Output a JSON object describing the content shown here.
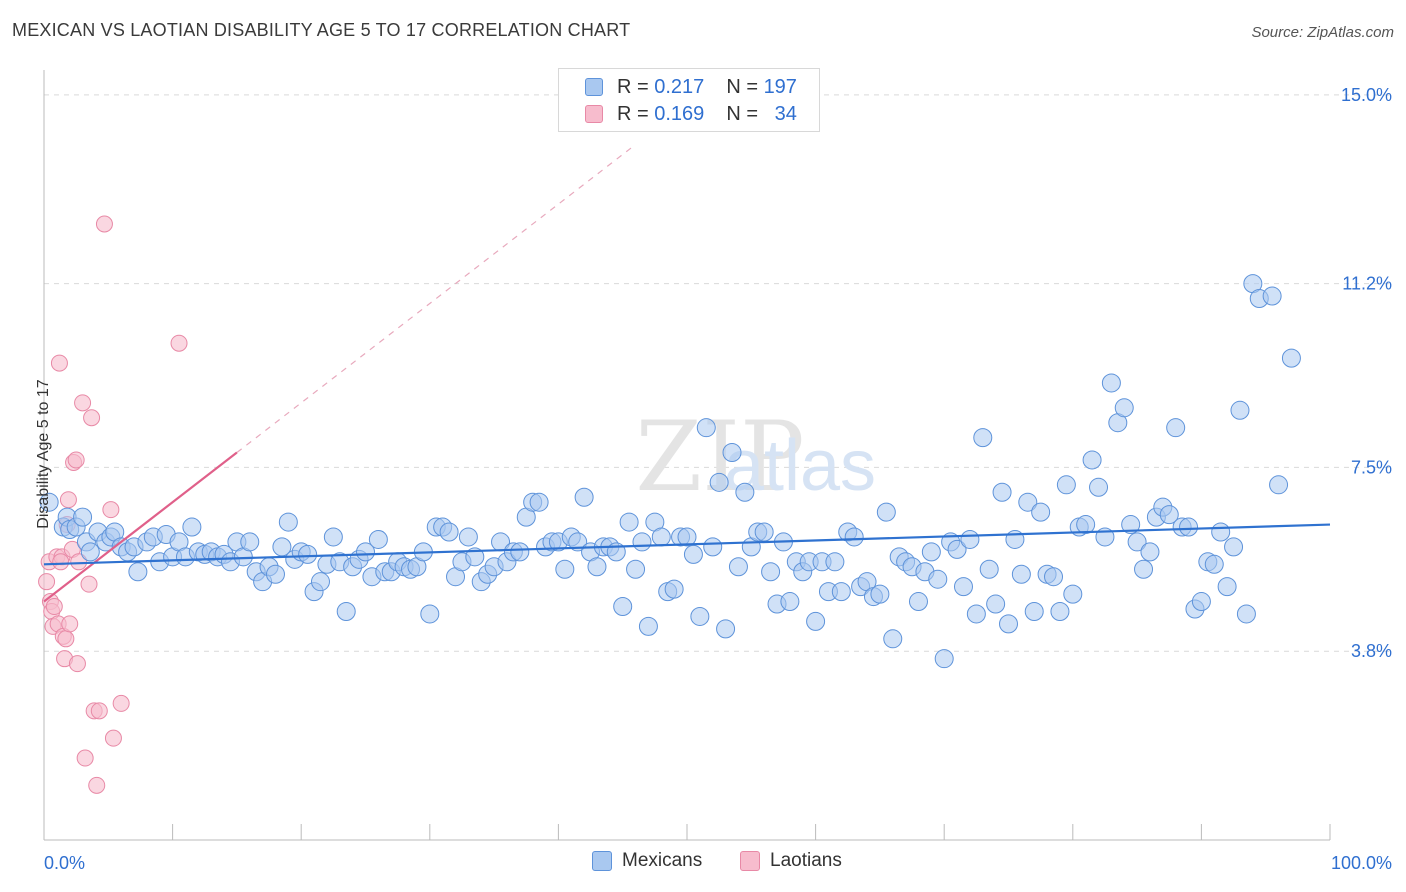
{
  "title": "MEXICAN VS LAOTIAN DISABILITY AGE 5 TO 17 CORRELATION CHART",
  "source": "Source: ZipAtlas.com",
  "watermark": "ZIPatlas",
  "legend": {
    "rows": [
      {
        "r_label": "R =",
        "r_value": "0.217",
        "n_label": "N =",
        "n_value": "197"
      },
      {
        "r_label": "R =",
        "r_value": "0.169",
        "n_label": "N =",
        "n_value": "34"
      }
    ]
  },
  "bottom_legend": [
    "Mexicans",
    "Laotians"
  ],
  "colors": {
    "mexicans_fill": "#a9c8f0",
    "mexicans_stroke": "#5e93da",
    "mexicans_line": "#2f72d0",
    "laotians_fill": "#f7bccd",
    "laotians_stroke": "#e889a6",
    "laotians_line": "#e0608a",
    "grid": "#d9d9d9",
    "tick_label": "#2f6fd0"
  },
  "chart_data": {
    "type": "scatter",
    "title": "MEXICAN VS LAOTIAN DISABILITY AGE 5 TO 17 CORRELATION CHART",
    "xlabel": "",
    "ylabel": "Disability Age 5 to 17",
    "xlim": [
      0,
      100
    ],
    "ylim": [
      0,
      15.5
    ],
    "x_tick_labels": [
      "0.0%",
      "100.0%"
    ],
    "y_ticks": [
      3.8,
      7.5,
      11.2,
      15.0
    ],
    "y_tick_labels": [
      "3.8%",
      "7.5%",
      "11.2%",
      "15.0%"
    ],
    "grid": true,
    "series": [
      {
        "name": "Mexicans",
        "trend": {
          "x": [
            0,
            100
          ],
          "y": [
            5.55,
            6.35
          ]
        },
        "points": [
          [
            0.4,
            6.8
          ],
          [
            1.5,
            6.3
          ],
          [
            1.8,
            6.5
          ],
          [
            2.0,
            6.25
          ],
          [
            2.5,
            6.3
          ],
          [
            3.0,
            6.5
          ],
          [
            3.3,
            6.0
          ],
          [
            3.6,
            5.8
          ],
          [
            4.2,
            6.2
          ],
          [
            4.8,
            6.0
          ],
          [
            5.2,
            6.1
          ],
          [
            5.5,
            6.2
          ],
          [
            6.0,
            5.9
          ],
          [
            6.5,
            5.8
          ],
          [
            7.0,
            5.9
          ],
          [
            7.3,
            5.4
          ],
          [
            8.0,
            6.0
          ],
          [
            8.5,
            6.1
          ],
          [
            9.0,
            5.6
          ],
          [
            9.5,
            6.15
          ],
          [
            10.0,
            5.7
          ],
          [
            10.5,
            6.0
          ],
          [
            11.0,
            5.7
          ],
          [
            11.5,
            6.3
          ],
          [
            12.0,
            5.8
          ],
          [
            12.5,
            5.75
          ],
          [
            13.0,
            5.8
          ],
          [
            13.5,
            5.7
          ],
          [
            14.0,
            5.75
          ],
          [
            14.5,
            5.6
          ],
          [
            15.0,
            6.0
          ],
          [
            15.5,
            5.7
          ],
          [
            16.0,
            6.0
          ],
          [
            16.5,
            5.4
          ],
          [
            17.0,
            5.2
          ],
          [
            17.5,
            5.5
          ],
          [
            18.0,
            5.35
          ],
          [
            18.5,
            5.9
          ],
          [
            19.0,
            6.4
          ],
          [
            19.5,
            5.65
          ],
          [
            20.0,
            5.8
          ],
          [
            20.5,
            5.75
          ],
          [
            21.0,
            5.0
          ],
          [
            21.5,
            5.2
          ],
          [
            22.0,
            5.55
          ],
          [
            22.5,
            6.1
          ],
          [
            23.0,
            5.6
          ],
          [
            23.5,
            4.6
          ],
          [
            24.0,
            5.5
          ],
          [
            24.5,
            5.65
          ],
          [
            25.0,
            5.8
          ],
          [
            25.5,
            5.3
          ],
          [
            26.0,
            6.05
          ],
          [
            26.5,
            5.4
          ],
          [
            27.0,
            5.4
          ],
          [
            27.5,
            5.6
          ],
          [
            28.0,
            5.5
          ],
          [
            28.5,
            5.45
          ],
          [
            29.0,
            5.5
          ],
          [
            29.5,
            5.8
          ],
          [
            30.0,
            4.55
          ],
          [
            30.5,
            6.3
          ],
          [
            31.0,
            6.3
          ],
          [
            31.5,
            6.2
          ],
          [
            32.0,
            5.3
          ],
          [
            32.5,
            5.6
          ],
          [
            33.0,
            6.1
          ],
          [
            33.5,
            5.7
          ],
          [
            34.0,
            5.2
          ],
          [
            34.5,
            5.35
          ],
          [
            35.0,
            5.5
          ],
          [
            35.5,
            6.0
          ],
          [
            36.0,
            5.6
          ],
          [
            36.5,
            5.8
          ],
          [
            37.0,
            5.8
          ],
          [
            37.5,
            6.5
          ],
          [
            38.0,
            6.8
          ],
          [
            38.5,
            6.8
          ],
          [
            39.0,
            5.9
          ],
          [
            39.5,
            6.0
          ],
          [
            40.0,
            6.0
          ],
          [
            40.5,
            5.45
          ],
          [
            41.0,
            6.1
          ],
          [
            41.5,
            6.0
          ],
          [
            42.0,
            6.9
          ],
          [
            42.5,
            5.8
          ],
          [
            43.0,
            5.5
          ],
          [
            43.5,
            5.9
          ],
          [
            44.0,
            5.9
          ],
          [
            44.5,
            5.8
          ],
          [
            45.0,
            4.7
          ],
          [
            45.5,
            6.4
          ],
          [
            46.0,
            5.45
          ],
          [
            46.5,
            6.0
          ],
          [
            47.0,
            4.3
          ],
          [
            47.5,
            6.4
          ],
          [
            48.0,
            6.1
          ],
          [
            48.5,
            5.0
          ],
          [
            49.0,
            5.05
          ],
          [
            49.5,
            6.1
          ],
          [
            50.0,
            6.1
          ],
          [
            50.5,
            5.75
          ],
          [
            51.0,
            4.5
          ],
          [
            51.5,
            8.3
          ],
          [
            52.0,
            5.9
          ],
          [
            52.5,
            7.2
          ],
          [
            53.0,
            4.25
          ],
          [
            53.5,
            7.8
          ],
          [
            54.0,
            5.5
          ],
          [
            54.5,
            7.0
          ],
          [
            55.0,
            5.9
          ],
          [
            55.5,
            6.2
          ],
          [
            56.0,
            6.2
          ],
          [
            56.5,
            5.4
          ],
          [
            57.0,
            4.75
          ],
          [
            57.5,
            6.0
          ],
          [
            58.0,
            4.8
          ],
          [
            58.5,
            5.6
          ],
          [
            59.0,
            5.4
          ],
          [
            59.5,
            5.6
          ],
          [
            60.0,
            4.4
          ],
          [
            60.5,
            5.6
          ],
          [
            61.0,
            5.0
          ],
          [
            61.5,
            5.6
          ],
          [
            62.0,
            5.0
          ],
          [
            62.5,
            6.2
          ],
          [
            63.0,
            6.1
          ],
          [
            63.5,
            5.1
          ],
          [
            64.0,
            5.2
          ],
          [
            64.5,
            4.9
          ],
          [
            65.0,
            4.95
          ],
          [
            65.5,
            6.6
          ],
          [
            66.0,
            4.05
          ],
          [
            66.5,
            5.7
          ],
          [
            67.0,
            5.6
          ],
          [
            67.5,
            5.5
          ],
          [
            68.0,
            4.8
          ],
          [
            68.5,
            5.4
          ],
          [
            69.0,
            5.8
          ],
          [
            69.5,
            5.25
          ],
          [
            70.0,
            3.65
          ],
          [
            70.5,
            6.0
          ],
          [
            71.0,
            5.85
          ],
          [
            71.5,
            5.1
          ],
          [
            72.0,
            6.05
          ],
          [
            72.5,
            4.55
          ],
          [
            73.0,
            8.1
          ],
          [
            73.5,
            5.45
          ],
          [
            74.0,
            4.75
          ],
          [
            74.5,
            7.0
          ],
          [
            75.0,
            4.35
          ],
          [
            75.5,
            6.05
          ],
          [
            76.0,
            5.35
          ],
          [
            76.5,
            6.8
          ],
          [
            77.0,
            4.6
          ],
          [
            77.5,
            6.6
          ],
          [
            78.0,
            5.35
          ],
          [
            78.5,
            5.3
          ],
          [
            79.0,
            4.6
          ],
          [
            79.5,
            7.15
          ],
          [
            80.0,
            4.95
          ],
          [
            80.5,
            6.3
          ],
          [
            81.0,
            6.35
          ],
          [
            81.5,
            7.65
          ],
          [
            82.0,
            7.1
          ],
          [
            82.5,
            6.1
          ],
          [
            83.0,
            9.2
          ],
          [
            83.5,
            8.4
          ],
          [
            84.0,
            8.7
          ],
          [
            84.5,
            6.35
          ],
          [
            85.0,
            6.0
          ],
          [
            85.5,
            5.45
          ],
          [
            86.0,
            5.8
          ],
          [
            86.5,
            6.5
          ],
          [
            87.0,
            6.7
          ],
          [
            87.5,
            6.55
          ],
          [
            88.0,
            8.3
          ],
          [
            88.5,
            6.3
          ],
          [
            89.0,
            6.3
          ],
          [
            89.5,
            4.65
          ],
          [
            90.0,
            4.8
          ],
          [
            90.5,
            5.6
          ],
          [
            91.0,
            5.55
          ],
          [
            91.5,
            6.2
          ],
          [
            92.0,
            5.1
          ],
          [
            92.5,
            5.9
          ],
          [
            93.0,
            8.65
          ],
          [
            93.5,
            4.55
          ],
          [
            94.0,
            11.2
          ],
          [
            94.5,
            10.9
          ],
          [
            95.5,
            10.95
          ],
          [
            96.0,
            7.15
          ],
          [
            97.0,
            9.7
          ]
        ]
      },
      {
        "name": "Laotians",
        "trend": {
          "x": [
            0,
            15
          ],
          "y": [
            4.8,
            7.8
          ]
        },
        "trend_extension": {
          "x": [
            15,
            46
          ],
          "y": [
            7.8,
            14.0
          ]
        },
        "points": [
          [
            0.2,
            5.2
          ],
          [
            0.4,
            5.6
          ],
          [
            0.5,
            4.8
          ],
          [
            0.6,
            4.6
          ],
          [
            0.7,
            4.3
          ],
          [
            0.8,
            4.7
          ],
          [
            1.0,
            5.7
          ],
          [
            1.1,
            4.35
          ],
          [
            1.2,
            9.6
          ],
          [
            1.4,
            5.7
          ],
          [
            1.5,
            4.1
          ],
          [
            1.6,
            3.65
          ],
          [
            1.7,
            4.05
          ],
          [
            1.9,
            6.85
          ],
          [
            2.0,
            4.35
          ],
          [
            2.2,
            5.85
          ],
          [
            2.3,
            7.6
          ],
          [
            2.5,
            7.65
          ],
          [
            2.7,
            5.6
          ],
          [
            2.6,
            3.55
          ],
          [
            3.0,
            8.8
          ],
          [
            3.2,
            1.65
          ],
          [
            3.5,
            5.15
          ],
          [
            3.7,
            8.5
          ],
          [
            3.9,
            2.6
          ],
          [
            4.1,
            1.1
          ],
          [
            4.3,
            2.6
          ],
          [
            4.7,
            12.4
          ],
          [
            5.2,
            6.65
          ],
          [
            5.4,
            2.05
          ],
          [
            6.0,
            2.75
          ],
          [
            10.5,
            10.0
          ],
          [
            1.3,
            5.6
          ],
          [
            1.8,
            6.35
          ]
        ]
      }
    ]
  }
}
